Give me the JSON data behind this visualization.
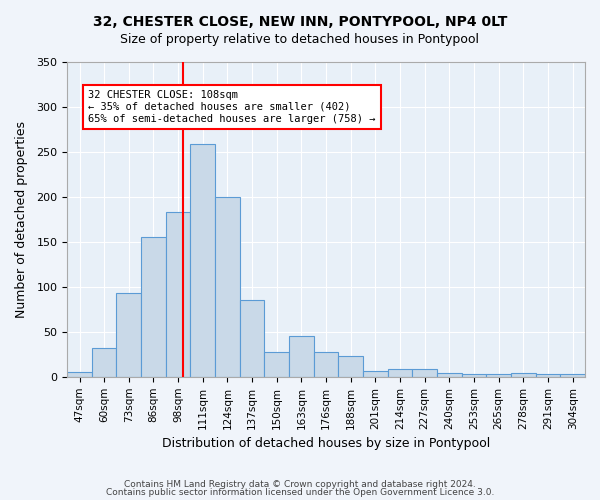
{
  "title": "32, CHESTER CLOSE, NEW INN, PONTYPOOL, NP4 0LT",
  "subtitle": "Size of property relative to detached houses in Pontypool",
  "xlabel": "Distribution of detached houses by size in Pontypool",
  "ylabel": "Number of detached properties",
  "footer1": "Contains HM Land Registry data © Crown copyright and database right 2024.",
  "footer2": "Contains public sector information licensed under the Open Government Licence 3.0.",
  "categories": [
    "47sqm",
    "60sqm",
    "73sqm",
    "86sqm",
    "98sqm",
    "111sqm",
    "124sqm",
    "137sqm",
    "150sqm",
    "163sqm",
    "176sqm",
    "188sqm",
    "201sqm",
    "214sqm",
    "227sqm",
    "240sqm",
    "253sqm",
    "265sqm",
    "278sqm",
    "291sqm",
    "304sqm"
  ],
  "values": [
    5,
    32,
    93,
    155,
    183,
    258,
    200,
    85,
    27,
    45,
    27,
    23,
    6,
    9,
    9,
    4,
    3,
    3,
    4,
    3,
    3
  ],
  "bar_color": "#c9d9e8",
  "bar_edge_color": "#5b9bd5",
  "vline_x": 108,
  "vline_color": "red",
  "annotation_text": "32 CHESTER CLOSE: 108sqm\n← 35% of detached houses are smaller (402)\n65% of semi-detached houses are larger (758) →",
  "annotation_box_color": "white",
  "annotation_box_edge": "red",
  "ylim": [
    0,
    350
  ],
  "yticks": [
    0,
    50,
    100,
    150,
    200,
    250,
    300,
    350
  ],
  "bg_color": "#f0f4fa",
  "plot_bg_color": "#e8f0f8"
}
